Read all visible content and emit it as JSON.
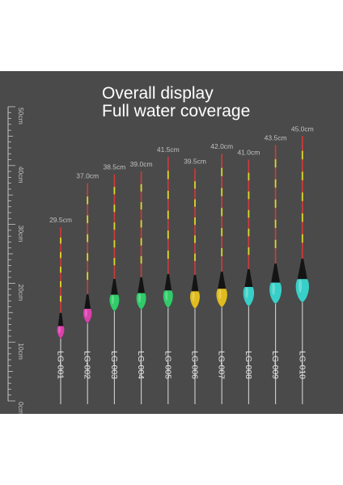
{
  "heading": {
    "line1": "Overall display",
    "line2": "Full water coverage"
  },
  "ruler": {
    "labels": [
      "50cm",
      "40cm",
      "30cm",
      "20cm",
      "10cm",
      "0cm"
    ]
  },
  "floats": [
    {
      "model": "LG-001",
      "length_label": "29.5cm",
      "length_cm": 29.5,
      "body_color": "#e040b0"
    },
    {
      "model": "LG-002",
      "length_label": "37.0cm",
      "length_cm": 37.0,
      "body_color": "#e040b0"
    },
    {
      "model": "LG-003",
      "length_label": "38.5cm",
      "length_cm": 38.5,
      "body_color": "#2ed36a"
    },
    {
      "model": "LG-004",
      "length_label": "39.0cm",
      "length_cm": 39.0,
      "body_color": "#2ed36a"
    },
    {
      "model": "LG-005",
      "length_label": "41.5cm",
      "length_cm": 41.5,
      "body_color": "#2ed36a"
    },
    {
      "model": "LG-006",
      "length_label": "39.5cm",
      "length_cm": 39.5,
      "body_color": "#e8c21a"
    },
    {
      "model": "LG-007",
      "length_label": "42.0cm",
      "length_cm": 42.0,
      "body_color": "#e8c21a"
    },
    {
      "model": "LG-008",
      "length_label": "41.0cm",
      "length_cm": 41.0,
      "body_color": "#37d6cf"
    },
    {
      "model": "LG-009",
      "length_label": "43.5cm",
      "length_cm": 43.5,
      "body_color": "#37d6cf"
    },
    {
      "model": "LG-010",
      "length_label": "45.0cm",
      "length_cm": 45.0,
      "body_color": "#37d6cf"
    }
  ],
  "colors": {
    "background": "#4a4a4a",
    "ruler": "#c8c8c8",
    "length_label": "#c0c0c0",
    "model_label": "#e6e6e6",
    "stem": "#d0d0d0",
    "tip_red": "#d23a3a",
    "tip_yellow": "#d9d92a",
    "body_black": "#141414"
  }
}
